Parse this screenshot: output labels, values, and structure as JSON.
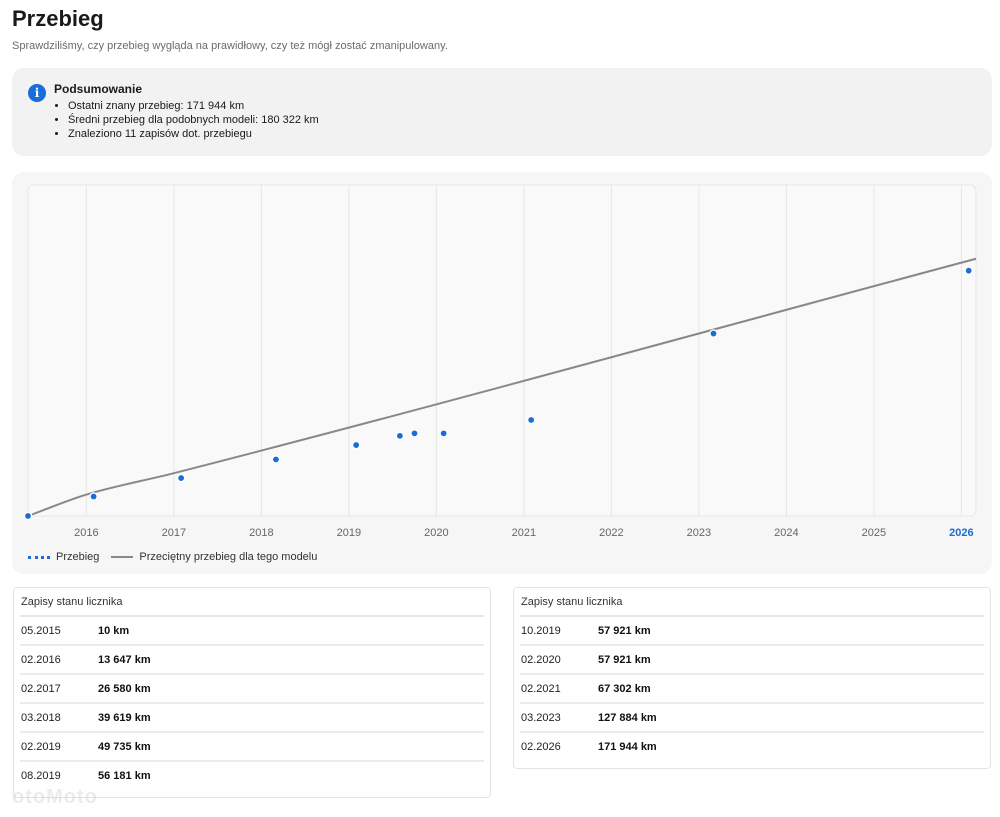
{
  "header": {
    "title": "Przebieg",
    "subtitle": "Sprawdziliśmy, czy przebieg wygląda na prawidłowy, czy też mógł zostać zmanipulowany."
  },
  "summary": {
    "title": "Podsumowanie",
    "items": [
      "Ostatni znany przebieg: 171 944 km",
      "Średni przebieg dla podobnych modeli: 180 322 km",
      "Znaleziono 11 zapisów dot. przebiegu"
    ]
  },
  "chart_data": {
    "type": "line",
    "title": "",
    "xlabel": "",
    "ylabel": "",
    "x_ticks": [
      "2016",
      "2017",
      "2018",
      "2019",
      "2020",
      "2021",
      "2022",
      "2023",
      "2024",
      "2025",
      "2026"
    ],
    "highlight_tick": "2026",
    "xlim": [
      "2015-05",
      "2026-03"
    ],
    "grid": "vertical",
    "legend_position": "bottom-left",
    "series": [
      {
        "name": "Przebieg",
        "color": "#1a6dd6",
        "style": "line-with-markers",
        "points": [
          {
            "x": "2015-05",
            "y": 10
          },
          {
            "x": "2016-02",
            "y": 13647
          },
          {
            "x": "2017-02",
            "y": 26580
          },
          {
            "x": "2018-03",
            "y": 39619
          },
          {
            "x": "2019-02",
            "y": 49735
          },
          {
            "x": "2019-08",
            "y": 56181
          },
          {
            "x": "2019-10",
            "y": 57921
          },
          {
            "x": "2020-02",
            "y": 57921
          },
          {
            "x": "2021-02",
            "y": 67302
          },
          {
            "x": "2023-03",
            "y": 127884
          },
          {
            "x": "2026-02",
            "y": 171944
          }
        ]
      },
      {
        "name": "Przeciętny przebieg dla tego modelu",
        "color": "#888888",
        "style": "line",
        "points": [
          {
            "x": "2015-05",
            "y": 0
          },
          {
            "x": "2016-01",
            "y": 15000
          },
          {
            "x": "2017-01",
            "y": 30000
          },
          {
            "x": "2026-03",
            "y": 180322
          }
        ]
      }
    ]
  },
  "records_left": {
    "title": "Zapisy stanu licznika",
    "rows": [
      {
        "date": "05.2015",
        "km": "10 km"
      },
      {
        "date": "02.2016",
        "km": "13 647 km"
      },
      {
        "date": "02.2017",
        "km": "26 580 km"
      },
      {
        "date": "03.2018",
        "km": "39 619 km"
      },
      {
        "date": "02.2019",
        "km": "49 735 km"
      },
      {
        "date": "08.2019",
        "km": "56 181 km"
      }
    ]
  },
  "records_right": {
    "title": "Zapisy stanu licznika",
    "rows": [
      {
        "date": "10.2019",
        "km": "57 921 km"
      },
      {
        "date": "02.2020",
        "km": "57 921 km"
      },
      {
        "date": "02.2021",
        "km": "67 302 km"
      },
      {
        "date": "03.2023",
        "km": "127 884 km"
      },
      {
        "date": "02.2026",
        "km": "171 944 km"
      }
    ]
  }
}
